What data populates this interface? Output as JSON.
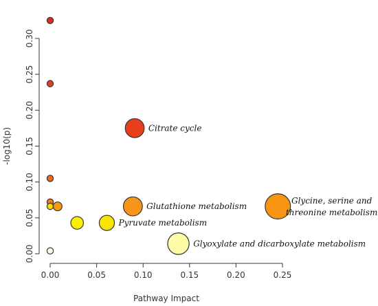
{
  "chart_data": {
    "type": "scatter",
    "title": "",
    "xlabel": "Pathway Impact",
    "ylabel": "-log10(p)",
    "xlim": [
      0,
      0.25
    ],
    "ylim": [
      0,
      0.32
    ],
    "xticks": [
      "0.00",
      "0.05",
      "0.10",
      "0.15",
      "0.20",
      "0.25"
    ],
    "yticks": [
      "0.00",
      "0.05",
      "0.10",
      "0.15",
      "0.20",
      "0.25",
      "0.30"
    ],
    "grid": false,
    "legend": "none",
    "points": [
      {
        "x": 0.0,
        "y": 0.325,
        "size": 1,
        "color": "#d7301f",
        "label": ""
      },
      {
        "x": 0.0,
        "y": 0.237,
        "size": 1,
        "color": "#e0402a",
        "label": ""
      },
      {
        "x": 0.091,
        "y": 0.175,
        "size": 3,
        "color": "#e8401c",
        "label": "Citrate cycle"
      },
      {
        "x": 0.0,
        "y": 0.105,
        "size": 1,
        "color": "#ea6a20",
        "label": ""
      },
      {
        "x": 0.0,
        "y": 0.072,
        "size": 1,
        "color": "#f07d1e",
        "label": ""
      },
      {
        "x": 0.0,
        "y": 0.066,
        "size": 1,
        "color": "#f5e000",
        "label": ""
      },
      {
        "x": 0.008,
        "y": 0.066,
        "size": 1.4,
        "color": "#f59a10",
        "label": ""
      },
      {
        "x": 0.089,
        "y": 0.066,
        "size": 3,
        "color": "#f7941a",
        "label": "Glutathione metabolism"
      },
      {
        "x": 0.245,
        "y": 0.066,
        "size": 4,
        "color": "#f89614",
        "label": "Glycine, serine and threonine metabolism"
      },
      {
        "x": 0.029,
        "y": 0.043,
        "size": 2,
        "color": "#f8f000",
        "label": ""
      },
      {
        "x": 0.061,
        "y": 0.043,
        "size": 2.4,
        "color": "#f6e600",
        "label": "Pyruvate metabolism"
      },
      {
        "x": 0.138,
        "y": 0.014,
        "size": 3.4,
        "color": "#fdfaa8",
        "label": "Glyoxylate and dicarboxylate metabolism"
      },
      {
        "x": 0.0,
        "y": 0.004,
        "size": 1,
        "color": "#fefee8",
        "label": ""
      }
    ],
    "annotations": [
      {
        "text": "Citrate cycle",
        "point": 2
      },
      {
        "text": "Glutathione metabolism",
        "point": 7
      },
      {
        "text": "Glycine, serine and",
        "point": 8,
        "line": 0
      },
      {
        "text": "threonine metabolism",
        "point": 8,
        "line": 1
      },
      {
        "text": "Pyruvate metabolism",
        "point": 10
      },
      {
        "text": "Glyoxylate and dicarboxylate metabolism",
        "point": 11
      }
    ]
  }
}
